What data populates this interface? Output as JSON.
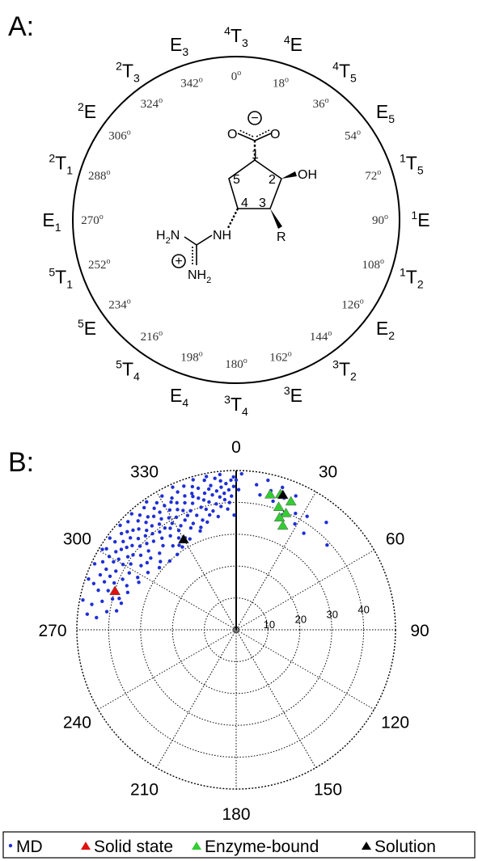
{
  "panel_a": {
    "label": "A:",
    "conformations": [
      {
        "sup": "4",
        "main": "T",
        "sub": "3"
      },
      {
        "sup": "4",
        "main": "E",
        "sub": ""
      },
      {
        "sup": "4",
        "main": "T",
        "sub": "5"
      },
      {
        "sup": "",
        "main": "E",
        "sub": "5"
      },
      {
        "sup": "1",
        "main": "T",
        "sub": "5"
      },
      {
        "sup": "1",
        "main": "E",
        "sub": ""
      },
      {
        "sup": "1",
        "main": "T",
        "sub": "2"
      },
      {
        "sup": "",
        "main": "E",
        "sub": "2"
      },
      {
        "sup": "3",
        "main": "T",
        "sub": "2"
      },
      {
        "sup": "3",
        "main": "E",
        "sub": ""
      },
      {
        "sup": "3",
        "main": "T",
        "sub": "4"
      },
      {
        "sup": "",
        "main": "E",
        "sub": "4"
      },
      {
        "sup": "5",
        "main": "T",
        "sub": "4"
      },
      {
        "sup": "5",
        "main": "E",
        "sub": ""
      },
      {
        "sup": "5",
        "main": "T",
        "sub": "1"
      },
      {
        "sup": "",
        "main": "E",
        "sub": "1"
      },
      {
        "sup": "2",
        "main": "T",
        "sub": "1"
      },
      {
        "sup": "2",
        "main": "E",
        "sub": ""
      },
      {
        "sup": "2",
        "main": "T",
        "sub": "3"
      },
      {
        "sup": "",
        "main": "E",
        "sub": "3"
      }
    ],
    "degree_labels": [
      "0",
      "18",
      "36",
      "54",
      "72",
      "90",
      "108",
      "126",
      "144",
      "162",
      "180",
      "198",
      "216",
      "234",
      "252",
      "270",
      "288",
      "306",
      "324",
      "342"
    ],
    "degree_mark": "o",
    "molecule": {
      "carboxylate_o_left": "O",
      "carboxylate_o_right": "O",
      "minus": "−",
      "hydroxyl": "OH",
      "r_group": "R",
      "amine": "NH",
      "guanidine_top": {
        "main": "H",
        "sub": "2",
        "tail": "N"
      },
      "guanidine_bottom": {
        "main": "NH",
        "sub": "2"
      },
      "plus": "+",
      "ring_numbers": [
        "1",
        "2",
        "3",
        "4",
        "5"
      ]
    }
  },
  "panel_b": {
    "label": "B:",
    "angle_labels": [
      "0",
      "30",
      "60",
      "90",
      "120",
      "150",
      "180",
      "210",
      "240",
      "270",
      "300",
      "330"
    ],
    "radial_labels": [
      "10",
      "20",
      "30",
      "40"
    ],
    "radial_max": 50,
    "colors": {
      "md": "#1f2fd6",
      "solid": "#e01010",
      "enzyme": "#33cc33",
      "solution": "#000000",
      "grid": "#000000"
    }
  },
  "chart_data": {
    "type": "scatter",
    "coordinate_system": "polar",
    "angle_zero": "top",
    "angle_direction": "clockwise",
    "angle_ticks": [
      0,
      30,
      60,
      90,
      120,
      150,
      180,
      210,
      240,
      270,
      300,
      330
    ],
    "radial_ticks": [
      10,
      20,
      30,
      40
    ],
    "radial_range": [
      0,
      50
    ],
    "grid": true,
    "legend_placement": "bottom",
    "series": [
      {
        "name": "MD",
        "marker": "dot",
        "color": "#1f2fd6",
        "points": [
          [
            275,
            44
          ],
          [
            278,
            41
          ],
          [
            280,
            46
          ],
          [
            282,
            43
          ],
          [
            284,
            40
          ],
          [
            286,
            45
          ],
          [
            287,
            42
          ],
          [
            288,
            47
          ],
          [
            290,
            44
          ],
          [
            291,
            41
          ],
          [
            292,
            46
          ],
          [
            293,
            43
          ],
          [
            294,
            39
          ],
          [
            295,
            45
          ],
          [
            296,
            42
          ],
          [
            297,
            47
          ],
          [
            298,
            38
          ],
          [
            299,
            44
          ],
          [
            300,
            41
          ],
          [
            300,
            46
          ],
          [
            301,
            43
          ],
          [
            302,
            39
          ],
          [
            302,
            48
          ],
          [
            303,
            45
          ],
          [
            304,
            41
          ],
          [
            304,
            36
          ],
          [
            305,
            44
          ],
          [
            306,
            47
          ],
          [
            306,
            40
          ],
          [
            307,
            43
          ],
          [
            308,
            38
          ],
          [
            308,
            45
          ],
          [
            309,
            42
          ],
          [
            310,
            47
          ],
          [
            310,
            35
          ],
          [
            311,
            40
          ],
          [
            311,
            44
          ],
          [
            312,
            37
          ],
          [
            312,
            46
          ],
          [
            313,
            42
          ],
          [
            314,
            39
          ],
          [
            314,
            45
          ],
          [
            315,
            48
          ],
          [
            315,
            34
          ],
          [
            316,
            41
          ],
          [
            316,
            44
          ],
          [
            317,
            38
          ],
          [
            318,
            46
          ],
          [
            318,
            42
          ],
          [
            319,
            35
          ],
          [
            319,
            40
          ],
          [
            320,
            44
          ],
          [
            320,
            47
          ],
          [
            321,
            37
          ],
          [
            321,
            42
          ],
          [
            322,
            39
          ],
          [
            322,
            45
          ],
          [
            323,
            33
          ],
          [
            323,
            48
          ],
          [
            324,
            41
          ],
          [
            324,
            44
          ],
          [
            325,
            36
          ],
          [
            325,
            39
          ],
          [
            326,
            46
          ],
          [
            326,
            42
          ],
          [
            327,
            38
          ],
          [
            327,
            44
          ],
          [
            328,
            34
          ],
          [
            328,
            47
          ],
          [
            329,
            41
          ],
          [
            329,
            39
          ],
          [
            330,
            45
          ],
          [
            330,
            36
          ],
          [
            331,
            43
          ],
          [
            331,
            48
          ],
          [
            332,
            40
          ],
          [
            332,
            37
          ],
          [
            333,
            45
          ],
          [
            333,
            32
          ],
          [
            334,
            42
          ],
          [
            334,
            46
          ],
          [
            335,
            38
          ],
          [
            335,
            44
          ],
          [
            336,
            35
          ],
          [
            336,
            41
          ],
          [
            337,
            47
          ],
          [
            337,
            39
          ],
          [
            338,
            43
          ],
          [
            338,
            36
          ],
          [
            339,
            45
          ],
          [
            339,
            40
          ],
          [
            340,
            48
          ],
          [
            340,
            33
          ],
          [
            341,
            42
          ],
          [
            341,
            38
          ],
          [
            342,
            45
          ],
          [
            342,
            44
          ],
          [
            343,
            36
          ],
          [
            343,
            47
          ],
          [
            344,
            40
          ],
          [
            344,
            43
          ],
          [
            345,
            35
          ],
          [
            345,
            46
          ],
          [
            346,
            39
          ],
          [
            346,
            42
          ],
          [
            347,
            44
          ],
          [
            347,
            37
          ],
          [
            348,
            48
          ],
          [
            348,
            41
          ],
          [
            349,
            45
          ],
          [
            349,
            38
          ],
          [
            350,
            43
          ],
          [
            350,
            46
          ],
          [
            351,
            40
          ],
          [
            351,
            36
          ],
          [
            352,
            44
          ],
          [
            352,
            48
          ],
          [
            353,
            42
          ],
          [
            353,
            39
          ],
          [
            354,
            45
          ],
          [
            354,
            47
          ],
          [
            355,
            41
          ],
          [
            355,
            43
          ],
          [
            356,
            38
          ],
          [
            356,
            46
          ],
          [
            357,
            44
          ],
          [
            357,
            40
          ],
          [
            358,
            47
          ],
          [
            358,
            42
          ],
          [
            359,
            45
          ],
          [
            359,
            48
          ],
          [
            359,
            36
          ],
          [
            283,
            37
          ],
          [
            289,
            36
          ],
          [
            296,
            34
          ],
          [
            303,
            33
          ],
          [
            309,
            31
          ],
          [
            316,
            30
          ],
          [
            322,
            30
          ],
          [
            327,
            31
          ],
          [
            301,
            49
          ],
          [
            295,
            49
          ],
          [
            318,
            49
          ],
          [
            325,
            49
          ],
          [
            336,
            49
          ],
          [
            331,
            33
          ],
          [
            326,
            32
          ],
          [
            341,
            34
          ],
          [
            312,
            32
          ],
          [
            307,
            35
          ],
          [
            298,
            35
          ],
          [
            292,
            37
          ],
          [
            285,
            38
          ],
          [
            279,
            38
          ],
          [
            276,
            47
          ],
          [
            281,
            49
          ],
          [
            289,
            49
          ],
          [
            306,
            49
          ],
          [
            312,
            49
          ],
          [
            344,
            49
          ],
          [
            349,
            49
          ],
          [
            354,
            49
          ],
          [
            0,
            47
          ],
          [
            1,
            44
          ],
          [
            2,
            49
          ],
          [
            8,
            46
          ],
          [
            10,
            43
          ],
          [
            12,
            48
          ],
          [
            14,
            45
          ],
          [
            16,
            42
          ],
          [
            18,
            47
          ],
          [
            20,
            44
          ],
          [
            22,
            39
          ],
          [
            24,
            46
          ],
          [
            27,
            41
          ],
          [
            29,
            38
          ],
          [
            32,
            42
          ],
          [
            35,
            37
          ],
          [
            40,
            44
          ],
          [
            47,
            39
          ]
        ]
      },
      {
        "name": "Solid state",
        "marker": "triangle",
        "color": "#e01010",
        "points": [
          [
            288,
            40
          ]
        ]
      },
      {
        "name": "Enzyme-bound",
        "marker": "triangle",
        "color": "#33cc33",
        "points": [
          [
            14,
            44
          ],
          [
            18,
            45
          ],
          [
            23,
            44
          ],
          [
            19,
            41
          ],
          [
            23,
            40
          ],
          [
            24,
            36
          ],
          [
            21,
            38
          ]
        ]
      },
      {
        "name": "Solution",
        "marker": "triangle",
        "color": "#000000",
        "points": [
          [
            19,
            45
          ],
          [
            330,
            33
          ]
        ]
      }
    ]
  }
}
